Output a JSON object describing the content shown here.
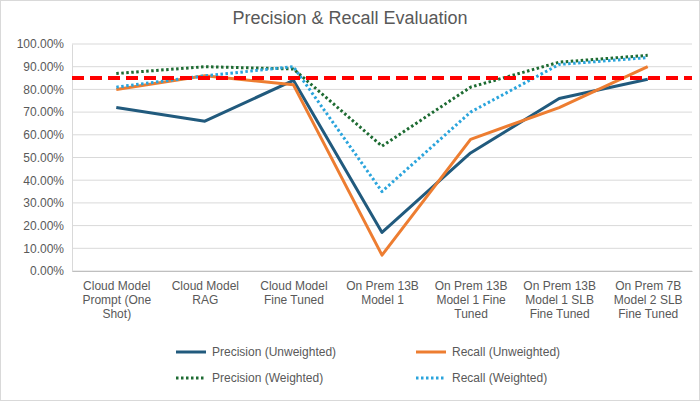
{
  "chart_data": {
    "type": "line",
    "title": "Precision & Recall Evaluation",
    "categories": [
      "Cloud Model Prompt (One Shot)",
      "Cloud Model RAG",
      "Cloud Model Fine Tuned",
      "On Prem 13B Model 1",
      "On Prem 13B Model 1 Fine Tuned",
      "On Prem 13B Model 1 SLB Fine Tuned",
      "On Prem 7B Model 2 SLB Fine Tuned"
    ],
    "series": [
      {
        "name": "Precision (Unweighted)",
        "color": "#215a7d",
        "line_style": "solid",
        "values": [
          72,
          66,
          84,
          17,
          52,
          76,
          84.5
        ]
      },
      {
        "name": "Recall (Unweighted)",
        "color": "#ed7d31",
        "line_style": "solid",
        "values": [
          80,
          86,
          82,
          7,
          58,
          72,
          90
        ]
      },
      {
        "name": "Precision (Weighted)",
        "color": "#1d6b32",
        "line_style": "dotted",
        "values": [
          87,
          90,
          89,
          55,
          81,
          92,
          95
        ]
      },
      {
        "name": "Recall (Weighted)",
        "color": "#2aa4dc",
        "line_style": "dotted",
        "values": [
          81,
          86,
          90,
          35,
          70,
          91,
          94
        ]
      }
    ],
    "reference_lines": [
      {
        "value": 85,
        "color": "#ff0000",
        "line_style": "dashed"
      }
    ],
    "ylim": [
      0,
      100
    ],
    "yticks": [
      {
        "value": 0,
        "label": "0.00%"
      },
      {
        "value": 10,
        "label": "10.00%"
      },
      {
        "value": 20,
        "label": "20.00%"
      },
      {
        "value": 30,
        "label": "30.00%"
      },
      {
        "value": 40,
        "label": "40.00%"
      },
      {
        "value": 50,
        "label": "50.00%"
      },
      {
        "value": 60,
        "label": "60.00%"
      },
      {
        "value": 70,
        "label": "70.00%"
      },
      {
        "value": 80,
        "label": "80.00%"
      },
      {
        "value": 90,
        "label": "90.00%"
      },
      {
        "value": 100,
        "label": "100.00%"
      }
    ],
    "grid": true,
    "legend": "bottom"
  }
}
